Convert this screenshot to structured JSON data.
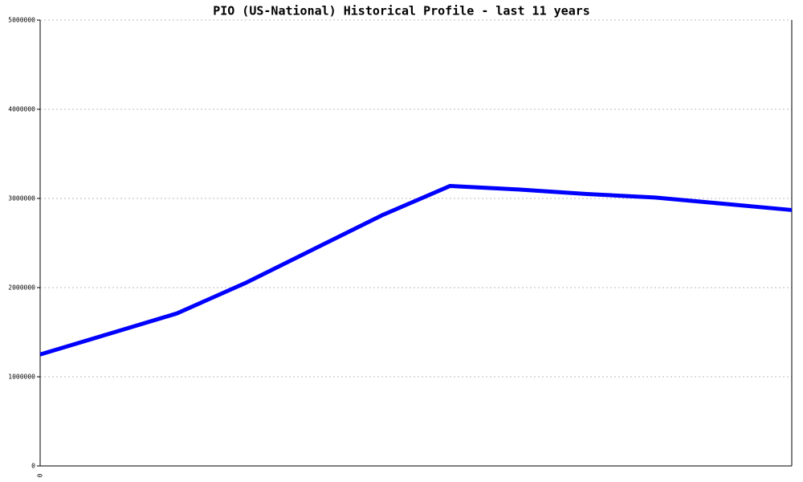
{
  "chart_data": {
    "type": "line",
    "title": "PIO (US-National) Historical Profile - last 11 years",
    "categories": [
      "0",
      null,
      null,
      null,
      null,
      null,
      null,
      null,
      null,
      null,
      null,
      null
    ],
    "series": [
      {
        "name": "PIO",
        "color": "#0000ff",
        "values": [
          1250000,
          1480000,
          1710000,
          2050000,
          2430000,
          2810000,
          3140000,
          3100000,
          3050000,
          3010000,
          2940000,
          2870000
        ]
      }
    ],
    "ylim": [
      0,
      5000000
    ],
    "yticks": [
      0,
      1000000,
      2000000,
      3000000,
      4000000,
      5000000
    ],
    "grid": true
  }
}
